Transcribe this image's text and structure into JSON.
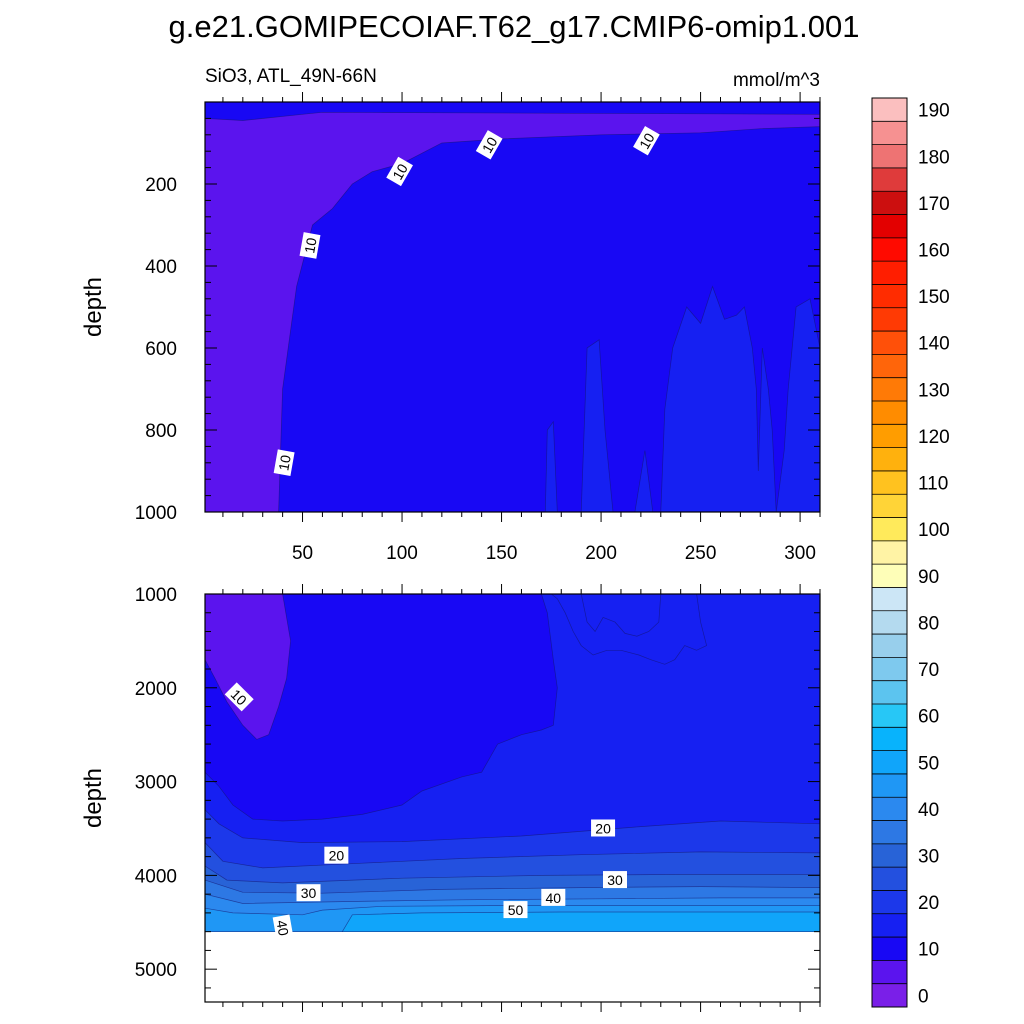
{
  "chart_data": {
    "type": "heatmap",
    "title": "g.e21.GOMIPECOIAF.T62_g17.CMIP6-omip1.001",
    "subtitle_left": "SiO3, ATL_49N-66N",
    "subtitle_right": "mmol/m^3",
    "colorbar": {
      "levels": [
        0,
        5,
        10,
        15,
        20,
        25,
        30,
        35,
        40,
        45,
        50,
        55,
        60,
        65,
        70,
        75,
        80,
        85,
        90,
        95,
        100,
        105,
        110,
        115,
        120,
        125,
        130,
        135,
        140,
        145,
        150,
        155,
        160,
        165,
        170,
        175,
        180,
        185,
        190
      ],
      "labels": [
        "0",
        "10",
        "20",
        "30",
        "40",
        "50",
        "60",
        "70",
        "80",
        "90",
        "100",
        "110",
        "120",
        "130",
        "140",
        "150",
        "160",
        "170",
        "180",
        "190"
      ],
      "colors": [
        "#7a1fe8",
        "#5b14ee",
        "#1808f4",
        "#1620f2",
        "#1c38ea",
        "#2350df",
        "#2863d7",
        "#2d78e4",
        "#2b89ef",
        "#1f97f5",
        "#10a5fa",
        "#08b3fc",
        "#27c7f6",
        "#5cc4ef",
        "#7ec9ee",
        "#98cfec",
        "#b4daef",
        "#cce6f6",
        "#fefeb8",
        "#fff3a5",
        "#ffea5b",
        "#ffd437",
        "#ffc21f",
        "#ffb10d",
        "#ff9d00",
        "#ff8c00",
        "#ff7a06",
        "#ff650a",
        "#ff5009",
        "#ff3a04",
        "#ff2c00",
        "#ff1e00",
        "#ff0a00",
        "#e30000",
        "#cc0f0f",
        "#df3b3b",
        "#ee7373",
        "#f69191",
        "#fbbfbf"
      ]
    },
    "panels": [
      {
        "name": "upper",
        "ylabel": "depth",
        "ylim": [
          0,
          1000
        ],
        "yticks": [
          200,
          400,
          600,
          800,
          1000
        ],
        "xlim": [
          1,
          310
        ],
        "xticks": [
          50,
          100,
          150,
          200,
          250,
          300
        ],
        "fills": [
          {
            "level": "5-10",
            "color": "#5b14ee"
          },
          {
            "level": "10-15",
            "color": "#1808f4"
          },
          {
            "level": "15-20",
            "color": "#1620f2"
          }
        ],
        "contour_labels": [
          {
            "text": "10",
            "x": 144,
            "y": 105
          },
          {
            "text": "10",
            "x": 223,
            "y": 95
          },
          {
            "text": "10",
            "x": 99,
            "y": 170
          },
          {
            "text": "10",
            "x": 54,
            "y": 350
          },
          {
            "text": "10",
            "x": 41,
            "y": 880
          }
        ]
      },
      {
        "name": "lower",
        "ylabel": "depth",
        "ylim": [
          1000,
          5350
        ],
        "yticks": [
          1000,
          2000,
          3000,
          4000,
          5000
        ],
        "xlim": [
          1,
          310
        ],
        "xticks": [
          50,
          100,
          150,
          200,
          250,
          300
        ],
        "fills": [
          {
            "level": "5-10",
            "color": "#5b14ee"
          },
          {
            "level": "10-15",
            "color": "#1808f4"
          },
          {
            "level": "15-20",
            "color": "#1620f2"
          },
          {
            "level": "20-25",
            "color": "#1c38ea"
          },
          {
            "level": "25-30",
            "color": "#2350df"
          },
          {
            "level": "30-35",
            "color": "#2863d7"
          },
          {
            "level": "35-40",
            "color": "#2d78e4"
          },
          {
            "level": "40-45",
            "color": "#2b89ef"
          },
          {
            "level": "45-50",
            "color": "#1f97f5"
          },
          {
            "level": "50-55",
            "color": "#10a5fa"
          }
        ],
        "contour_labels": [
          {
            "text": "10",
            "x": 18,
            "y": 2100
          },
          {
            "text": "20",
            "x": 67,
            "y": 3790
          },
          {
            "text": "20",
            "x": 201,
            "y": 3500
          },
          {
            "text": "30",
            "x": 53,
            "y": 4190
          },
          {
            "text": "30",
            "x": 207,
            "y": 4050
          },
          {
            "text": "40",
            "x": 176,
            "y": 4240
          },
          {
            "text": "40",
            "x": 40,
            "y": 4560
          },
          {
            "text": "50",
            "x": 157,
            "y": 4370
          }
        ]
      }
    ]
  }
}
